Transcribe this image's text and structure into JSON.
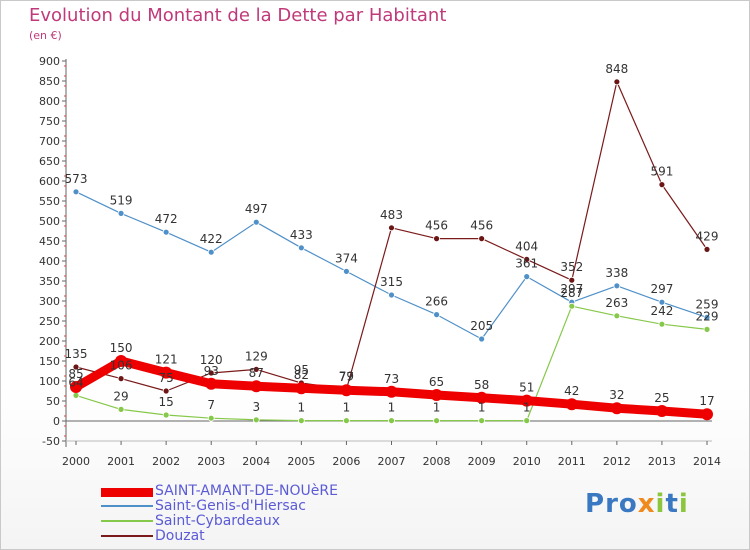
{
  "title": "Evolution du Montant de la Dette par Habitant",
  "subtitle": "(en €)",
  "logo": "Proxiti",
  "chart_data": {
    "type": "line",
    "title": "Evolution du Montant de la Dette par Habitant",
    "subtitle": "(en €)",
    "x": [
      "2000",
      "2001",
      "2002",
      "2003",
      "2004",
      "2005",
      "2006",
      "2007",
      "2008",
      "2009",
      "2010",
      "2011",
      "2012",
      "2013",
      "2014"
    ],
    "ylim": [
      -50,
      900
    ],
    "yticks": [
      -50,
      0,
      50,
      100,
      150,
      200,
      250,
      300,
      350,
      400,
      450,
      500,
      550,
      600,
      650,
      700,
      750,
      800,
      850,
      900
    ],
    "grid": false,
    "legend": "bottom-left",
    "series": [
      {
        "name": "SAINT-AMANT-DE-NOUèRE",
        "color": "#ee0000",
        "values": [
          85,
          150,
          121,
          93,
          87,
          82,
          77,
          73,
          65,
          58,
          51,
          42,
          32,
          25,
          17
        ]
      },
      {
        "name": "Saint-Genis-d'Hiersac",
        "color": "#4f90c8",
        "values": [
          573,
          519,
          472,
          422,
          497,
          433,
          374,
          315,
          266,
          205,
          361,
          297,
          338,
          297,
          259
        ]
      },
      {
        "name": "Saint-Cybardeaux",
        "color": "#86c84a",
        "values": [
          64,
          29,
          15,
          7,
          3,
          1,
          1,
          1,
          1,
          1,
          1,
          287,
          263,
          242,
          229
        ]
      },
      {
        "name": "Douzat",
        "color": "#7a1a1a",
        "values": [
          135,
          106,
          75,
          120,
          129,
          95,
          79,
          483,
          456,
          456,
          404,
          352,
          848,
          591,
          429
        ]
      }
    ]
  }
}
